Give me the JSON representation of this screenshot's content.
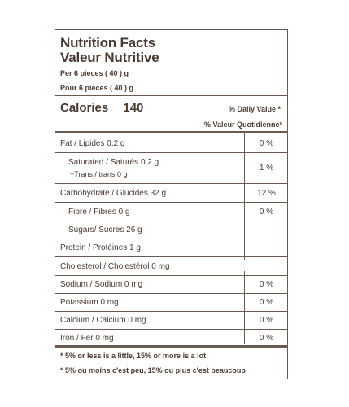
{
  "title_en": "Nutrition Facts",
  "title_fr": "Valeur Nutritive",
  "serving_en": "Per 6 pieces ( 40 ) g",
  "serving_fr": "Pour 6 pièces ( 40 ) g",
  "calories_label": "Calories",
  "calories_value": "140",
  "dv_en": "% Daily Value *",
  "dv_fr": "% Valeur Quotidienne*",
  "rows": {
    "fat": {
      "label": "Fat / Lipides 0.2 g",
      "pct": "0 %"
    },
    "saturated": {
      "label": "Saturated / Saturés 0.2 g",
      "pct": "1 %"
    },
    "trans": {
      "label": "+Trans / trans 0 g"
    },
    "carb": {
      "label": "Carbohydrate / Glucides 32 g",
      "pct": "12 %"
    },
    "fibre": {
      "label": "Fibre / Fibres 0 g",
      "pct": "0 %"
    },
    "sugars": {
      "label": "Sugars/ Sucres 26 g"
    },
    "protein": {
      "label": "Protein / Protéines 1 g"
    },
    "cholesterol": {
      "label": "Cholesterol / Cholestérol 0 mg"
    },
    "sodium": {
      "label": "Sodium / Sodium 0 mg",
      "pct": "0 %"
    },
    "potassium": {
      "label": "Potassium 0 mg",
      "pct": "0 %"
    },
    "calcium": {
      "label": "Calcium / Calcium 0 mg",
      "pct": "0 %"
    },
    "iron": {
      "label": "Iron / Fer 0 mg",
      "pct": "0 %"
    }
  },
  "footnote_en": "* 5% or less is a little, 15% or more is a lot",
  "footnote_fr": "* 5% ou moins c'est peu, 15% ou plus c'est beaucoup"
}
